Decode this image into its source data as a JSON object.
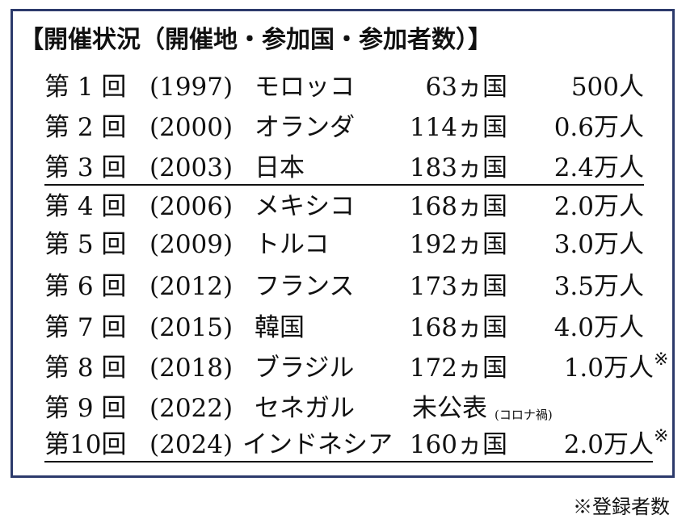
{
  "title": "【開催状況（開催地・参加国・参加者数）】",
  "rows": [
    {
      "edition": "第 1 回",
      "year": "(1997)",
      "venue": "モロッコ",
      "countries": "63ヵ国",
      "participants": "500人"
    },
    {
      "edition": "第 2 回",
      "year": "(2000)",
      "venue": "オランダ",
      "countries": "114ヵ国",
      "participants": "0.6万人"
    },
    {
      "edition": "第 3 回",
      "year": "(2003)",
      "venue": "日本",
      "countries": "183ヵ国",
      "participants": "2.4万人",
      "underlined": true
    },
    {
      "edition": "第 4 回",
      "year": "(2006)",
      "venue": "メキシコ",
      "countries": "168ヵ国",
      "participants": "2.0万人"
    },
    {
      "edition": "第 5 回",
      "year": "(2009)",
      "venue": "トルコ",
      "countries": "192ヵ国",
      "participants": "3.0万人"
    },
    {
      "edition": "第 6 回",
      "year": "(2012)",
      "venue": "フランス",
      "countries": "173ヵ国",
      "participants": "3.5万人"
    },
    {
      "edition": "第 7 回",
      "year": "(2015)",
      "venue": "韓国",
      "countries": "168ヵ国",
      "participants": "4.0万人"
    },
    {
      "edition": "第 8 回",
      "year": "(2018)",
      "venue": "ブラジル",
      "countries": "172ヵ国",
      "participants": "1.0万人",
      "mark": "※"
    },
    {
      "edition": "第 9 回",
      "year": "(2022)",
      "venue": "セネガル",
      "countries": "未公表",
      "countries_note": "(コロナ禍)"
    },
    {
      "edition": "第10回",
      "year": "(2024)",
      "venue": "インドネシア",
      "countries": "160ヵ国",
      "participants": "2.0万人",
      "mark": "※",
      "underlined": true
    }
  ],
  "footnote": "※登録者数"
}
